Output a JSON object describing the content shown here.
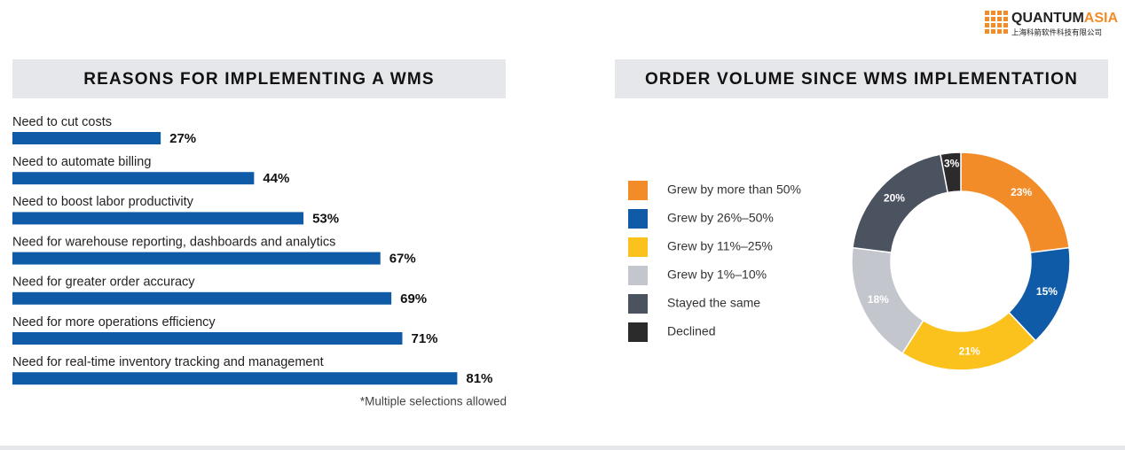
{
  "logo": {
    "name_part1": "QUANTUM",
    "name_part2": "ASIA",
    "subtitle": "上海科箭软件科技有限公司"
  },
  "chart_data": [
    {
      "type": "bar",
      "orientation": "horizontal",
      "title": "REASONS FOR IMPLEMENTING A WMS",
      "categories": [
        "Need to cut costs",
        "Need to automate billing",
        "Need to boost labor productivity",
        "Need for warehouse reporting, dashboards and analytics",
        "Need for greater order accuracy",
        "Need for more operations efficiency",
        "Need for real-time inventory tracking and management"
      ],
      "values": [
        27,
        44,
        53,
        67,
        69,
        71,
        81
      ],
      "value_labels": [
        "27%",
        "44%",
        "53%",
        "67%",
        "69%",
        "71%",
        "81%"
      ],
      "color": "#0f5ba8",
      "note": "*Multiple selections allowed"
    },
    {
      "type": "pie",
      "title": "ORDER VOLUME SINCE WMS IMPLEMENTATION",
      "donut": true,
      "categories": [
        "Grew by more than 50%",
        "Grew by 26%–50%",
        "Grew by 11%–25%",
        "Grew by 1%–10%",
        "Stayed the same",
        "Declined"
      ],
      "values": [
        23,
        15,
        21,
        18,
        20,
        3
      ],
      "value_labels": [
        "23%",
        "15%",
        "21%",
        "18%",
        "20%",
        "3%"
      ],
      "colors": [
        "#f28c28",
        "#0f5ba8",
        "#fbc21d",
        "#c3c6cc",
        "#4b5260",
        "#2b2b2b"
      ],
      "legend": "left"
    }
  ]
}
